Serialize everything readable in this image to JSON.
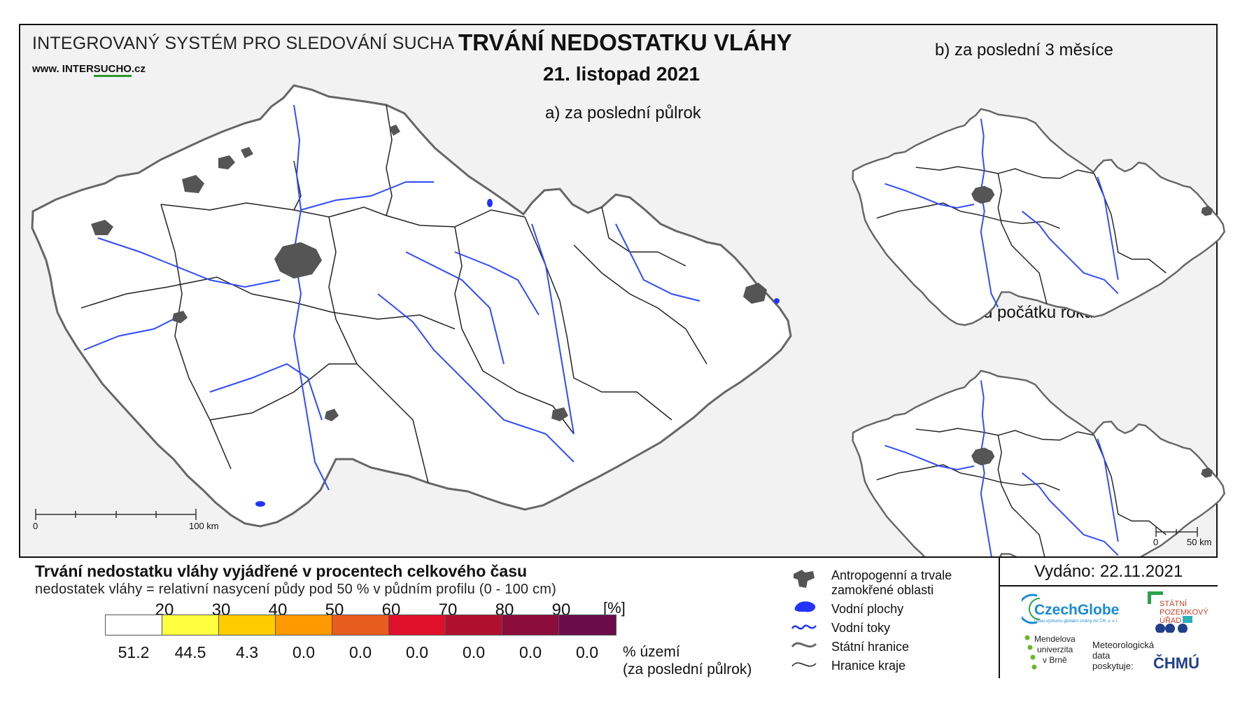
{
  "header": {
    "system_title": "INTEGROVANÝ SYSTÉM PRO SLEDOVÁNÍ SUCHA",
    "website_prefix": "www. INTER",
    "website_accent": "SUCHO",
    "website_suffix": ".cz",
    "main_title": "TRVÁNÍ NEDOSTATKU VLÁHY",
    "date": "21. listopad 2021"
  },
  "maps": {
    "a_label": "a) za poslední půlrok",
    "b_label": "b) za poslední 3 měsíce",
    "c_label": "c) od počátku roku",
    "scale_a": {
      "zero": "0",
      "end": "100 km"
    },
    "scale_small": {
      "zero": "0",
      "end": "50 km"
    }
  },
  "legend": {
    "title": "Trvání nedostatku vláhy vyjádřené v procentech celkového času",
    "subtitle": "nedostatek vláhy = relativní nasycení půdy pod 50 % v půdním profilu (0 - 100 cm)",
    "thresholds": [
      "20",
      "30",
      "40",
      "50",
      "60",
      "70",
      "80",
      "90"
    ],
    "unit": "[%]",
    "colors": [
      "#ffffff",
      "#ffff40",
      "#ffcc00",
      "#ff9900",
      "#e85c1e",
      "#e0102a",
      "#b0102e",
      "#8c0c3c",
      "#6a0c4a"
    ],
    "percentages": [
      "51.2",
      "44.5",
      "4.3",
      "0.0",
      "0.0",
      "0.0",
      "0.0",
      "0.0",
      "0.0"
    ],
    "pct_caption_1": "% území",
    "pct_caption_2": "(za poslední půlrok)"
  },
  "symbols": {
    "anthropogenic_1": "Antropogenní a trvale",
    "anthropogenic_2": "zamokřené oblasti",
    "water_bodies": "Vodní plochy",
    "water_streams": "Vodní toky",
    "state_border": "Státní hranice",
    "region_border": "Hranice kraje",
    "colors": {
      "anthropogenic": "#555555",
      "water": "#1f3fff",
      "border": "#666666",
      "region": "#222222"
    }
  },
  "issued": "Vydáno: 22.11.2021",
  "logos": {
    "czechglobe": "CzechGlobe",
    "czechglobe_sub": "Ústav výzkumu globální změny AV ČR, v. v. i.",
    "spu_1": "STÁTNÍ",
    "spu_2": "POZEMKOVÝ",
    "spu_3": "ÚŘAD",
    "mendel_1": "Mendelova",
    "mendel_2": "univerzita",
    "mendel_3": "v Brně",
    "meteo_1": "Meteorologická",
    "meteo_2": "data",
    "meteo_3": "poskytuje:",
    "chmu": "ČHMÚ"
  }
}
